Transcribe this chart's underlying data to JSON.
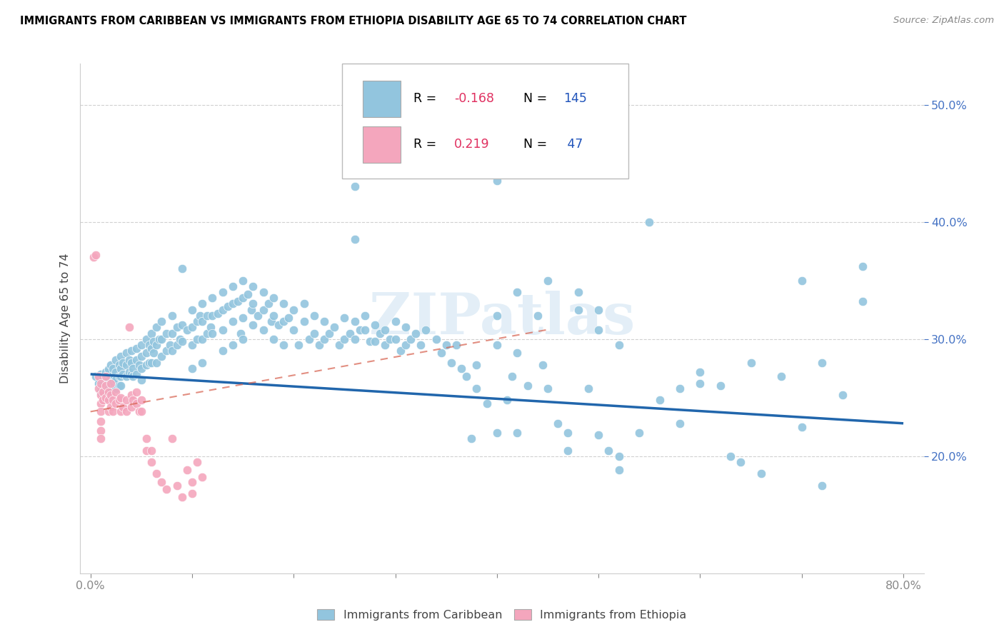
{
  "title": "IMMIGRANTS FROM CARIBBEAN VS IMMIGRANTS FROM ETHIOPIA DISABILITY AGE 65 TO 74 CORRELATION CHART",
  "source": "Source: ZipAtlas.com",
  "xlabel_ticks": [
    "0.0%",
    "",
    "",
    "",
    "",
    "",
    "",
    "",
    "80.0%"
  ],
  "xlabel_tick_vals": [
    0.0,
    0.1,
    0.2,
    0.3,
    0.4,
    0.5,
    0.6,
    0.7,
    0.8
  ],
  "ylabel_ticks": [
    "20.0%",
    "30.0%",
    "40.0%",
    "50.0%"
  ],
  "ylabel_tick_vals": [
    0.2,
    0.3,
    0.4,
    0.5
  ],
  "xlim": [
    -0.01,
    0.82
  ],
  "ylim": [
    0.1,
    0.535
  ],
  "blue_color": "#92c5de",
  "pink_color": "#f4a6bd",
  "trend_blue": "#2166ac",
  "trend_pink": "#d6604d",
  "watermark": "ZIPatlas",
  "legend_label1": "Immigrants from Caribbean",
  "legend_label2": "Immigrants from Ethiopia",
  "blue_scatter": [
    [
      0.005,
      0.268
    ],
    [
      0.008,
      0.262
    ],
    [
      0.01,
      0.27
    ],
    [
      0.01,
      0.26
    ],
    [
      0.01,
      0.255
    ],
    [
      0.012,
      0.268
    ],
    [
      0.015,
      0.272
    ],
    [
      0.015,
      0.258
    ],
    [
      0.018,
      0.274
    ],
    [
      0.018,
      0.265
    ],
    [
      0.018,
      0.258
    ],
    [
      0.018,
      0.252
    ],
    [
      0.02,
      0.278
    ],
    [
      0.02,
      0.268
    ],
    [
      0.02,
      0.26
    ],
    [
      0.02,
      0.255
    ],
    [
      0.022,
      0.275
    ],
    [
      0.022,
      0.263
    ],
    [
      0.025,
      0.282
    ],
    [
      0.025,
      0.272
    ],
    [
      0.025,
      0.265
    ],
    [
      0.025,
      0.258
    ],
    [
      0.028,
      0.278
    ],
    [
      0.028,
      0.268
    ],
    [
      0.028,
      0.26
    ],
    [
      0.03,
      0.285
    ],
    [
      0.03,
      0.275
    ],
    [
      0.03,
      0.268
    ],
    [
      0.03,
      0.26
    ],
    [
      0.032,
      0.28
    ],
    [
      0.032,
      0.27
    ],
    [
      0.035,
      0.288
    ],
    [
      0.035,
      0.278
    ],
    [
      0.035,
      0.268
    ],
    [
      0.038,
      0.282
    ],
    [
      0.038,
      0.272
    ],
    [
      0.04,
      0.29
    ],
    [
      0.04,
      0.28
    ],
    [
      0.04,
      0.27
    ],
    [
      0.042,
      0.275
    ],
    [
      0.042,
      0.268
    ],
    [
      0.045,
      0.292
    ],
    [
      0.045,
      0.282
    ],
    [
      0.045,
      0.27
    ],
    [
      0.048,
      0.278
    ],
    [
      0.05,
      0.295
    ],
    [
      0.05,
      0.285
    ],
    [
      0.05,
      0.275
    ],
    [
      0.05,
      0.265
    ],
    [
      0.055,
      0.3
    ],
    [
      0.055,
      0.288
    ],
    [
      0.055,
      0.278
    ],
    [
      0.058,
      0.295
    ],
    [
      0.058,
      0.28
    ],
    [
      0.06,
      0.305
    ],
    [
      0.06,
      0.292
    ],
    [
      0.06,
      0.28
    ],
    [
      0.062,
      0.298
    ],
    [
      0.062,
      0.288
    ],
    [
      0.065,
      0.31
    ],
    [
      0.065,
      0.295
    ],
    [
      0.065,
      0.28
    ],
    [
      0.068,
      0.3
    ],
    [
      0.07,
      0.315
    ],
    [
      0.07,
      0.3
    ],
    [
      0.07,
      0.285
    ],
    [
      0.075,
      0.305
    ],
    [
      0.075,
      0.29
    ],
    [
      0.078,
      0.295
    ],
    [
      0.08,
      0.32
    ],
    [
      0.08,
      0.305
    ],
    [
      0.08,
      0.29
    ],
    [
      0.085,
      0.31
    ],
    [
      0.085,
      0.295
    ],
    [
      0.088,
      0.3
    ],
    [
      0.09,
      0.36
    ],
    [
      0.09,
      0.312
    ],
    [
      0.09,
      0.298
    ],
    [
      0.095,
      0.308
    ],
    [
      0.1,
      0.325
    ],
    [
      0.1,
      0.31
    ],
    [
      0.1,
      0.295
    ],
    [
      0.1,
      0.275
    ],
    [
      0.105,
      0.315
    ],
    [
      0.105,
      0.3
    ],
    [
      0.108,
      0.32
    ],
    [
      0.11,
      0.33
    ],
    [
      0.11,
      0.315
    ],
    [
      0.11,
      0.3
    ],
    [
      0.11,
      0.28
    ],
    [
      0.115,
      0.32
    ],
    [
      0.115,
      0.305
    ],
    [
      0.118,
      0.31
    ],
    [
      0.12,
      0.335
    ],
    [
      0.12,
      0.32
    ],
    [
      0.12,
      0.305
    ],
    [
      0.125,
      0.322
    ],
    [
      0.13,
      0.34
    ],
    [
      0.13,
      0.325
    ],
    [
      0.13,
      0.308
    ],
    [
      0.13,
      0.29
    ],
    [
      0.135,
      0.328
    ],
    [
      0.14,
      0.345
    ],
    [
      0.14,
      0.33
    ],
    [
      0.14,
      0.315
    ],
    [
      0.14,
      0.295
    ],
    [
      0.145,
      0.332
    ],
    [
      0.148,
      0.305
    ],
    [
      0.15,
      0.35
    ],
    [
      0.15,
      0.335
    ],
    [
      0.15,
      0.318
    ],
    [
      0.15,
      0.3
    ],
    [
      0.155,
      0.338
    ],
    [
      0.158,
      0.325
    ],
    [
      0.16,
      0.345
    ],
    [
      0.16,
      0.33
    ],
    [
      0.16,
      0.312
    ],
    [
      0.165,
      0.32
    ],
    [
      0.17,
      0.34
    ],
    [
      0.17,
      0.325
    ],
    [
      0.17,
      0.308
    ],
    [
      0.175,
      0.33
    ],
    [
      0.178,
      0.315
    ],
    [
      0.18,
      0.335
    ],
    [
      0.18,
      0.32
    ],
    [
      0.18,
      0.3
    ],
    [
      0.185,
      0.312
    ],
    [
      0.19,
      0.33
    ],
    [
      0.19,
      0.315
    ],
    [
      0.19,
      0.295
    ],
    [
      0.195,
      0.318
    ],
    [
      0.2,
      0.325
    ],
    [
      0.2,
      0.308
    ],
    [
      0.205,
      0.295
    ],
    [
      0.21,
      0.33
    ],
    [
      0.21,
      0.315
    ],
    [
      0.215,
      0.3
    ],
    [
      0.22,
      0.32
    ],
    [
      0.22,
      0.305
    ],
    [
      0.225,
      0.295
    ],
    [
      0.23,
      0.315
    ],
    [
      0.23,
      0.3
    ],
    [
      0.235,
      0.305
    ],
    [
      0.24,
      0.31
    ],
    [
      0.245,
      0.295
    ],
    [
      0.25,
      0.318
    ],
    [
      0.25,
      0.3
    ],
    [
      0.255,
      0.305
    ],
    [
      0.26,
      0.43
    ],
    [
      0.26,
      0.385
    ],
    [
      0.26,
      0.315
    ],
    [
      0.26,
      0.3
    ],
    [
      0.265,
      0.308
    ],
    [
      0.27,
      0.32
    ],
    [
      0.27,
      0.308
    ],
    [
      0.275,
      0.298
    ],
    [
      0.28,
      0.312
    ],
    [
      0.28,
      0.298
    ],
    [
      0.285,
      0.305
    ],
    [
      0.29,
      0.308
    ],
    [
      0.29,
      0.295
    ],
    [
      0.295,
      0.3
    ],
    [
      0.3,
      0.315
    ],
    [
      0.3,
      0.3
    ],
    [
      0.305,
      0.29
    ],
    [
      0.31,
      0.31
    ],
    [
      0.31,
      0.295
    ],
    [
      0.315,
      0.3
    ],
    [
      0.32,
      0.305
    ],
    [
      0.325,
      0.295
    ],
    [
      0.33,
      0.308
    ],
    [
      0.34,
      0.3
    ],
    [
      0.345,
      0.288
    ],
    [
      0.35,
      0.295
    ],
    [
      0.355,
      0.28
    ],
    [
      0.36,
      0.295
    ],
    [
      0.365,
      0.275
    ],
    [
      0.37,
      0.268
    ],
    [
      0.375,
      0.215
    ],
    [
      0.38,
      0.278
    ],
    [
      0.38,
      0.258
    ],
    [
      0.39,
      0.245
    ],
    [
      0.4,
      0.435
    ],
    [
      0.4,
      0.32
    ],
    [
      0.4,
      0.295
    ],
    [
      0.4,
      0.22
    ],
    [
      0.41,
      0.248
    ],
    [
      0.415,
      0.268
    ],
    [
      0.42,
      0.34
    ],
    [
      0.42,
      0.288
    ],
    [
      0.42,
      0.22
    ],
    [
      0.43,
      0.26
    ],
    [
      0.44,
      0.32
    ],
    [
      0.445,
      0.278
    ],
    [
      0.45,
      0.35
    ],
    [
      0.45,
      0.258
    ],
    [
      0.46,
      0.228
    ],
    [
      0.47,
      0.22
    ],
    [
      0.47,
      0.205
    ],
    [
      0.48,
      0.34
    ],
    [
      0.48,
      0.325
    ],
    [
      0.49,
      0.258
    ],
    [
      0.5,
      0.325
    ],
    [
      0.5,
      0.308
    ],
    [
      0.5,
      0.218
    ],
    [
      0.51,
      0.205
    ],
    [
      0.52,
      0.295
    ],
    [
      0.52,
      0.2
    ],
    [
      0.52,
      0.188
    ],
    [
      0.54,
      0.22
    ],
    [
      0.55,
      0.4
    ],
    [
      0.56,
      0.248
    ],
    [
      0.58,
      0.258
    ],
    [
      0.58,
      0.228
    ],
    [
      0.6,
      0.272
    ],
    [
      0.6,
      0.262
    ],
    [
      0.62,
      0.26
    ],
    [
      0.63,
      0.2
    ],
    [
      0.64,
      0.195
    ],
    [
      0.65,
      0.28
    ],
    [
      0.66,
      0.185
    ],
    [
      0.68,
      0.268
    ],
    [
      0.7,
      0.35
    ],
    [
      0.7,
      0.225
    ],
    [
      0.72,
      0.28
    ],
    [
      0.72,
      0.175
    ],
    [
      0.74,
      0.252
    ],
    [
      0.76,
      0.362
    ],
    [
      0.76,
      0.332
    ]
  ],
  "pink_scatter": [
    [
      0.003,
      0.37
    ],
    [
      0.005,
      0.372
    ],
    [
      0.008,
      0.268
    ],
    [
      0.008,
      0.258
    ],
    [
      0.01,
      0.262
    ],
    [
      0.01,
      0.252
    ],
    [
      0.01,
      0.245
    ],
    [
      0.01,
      0.238
    ],
    [
      0.01,
      0.23
    ],
    [
      0.01,
      0.222
    ],
    [
      0.01,
      0.215
    ],
    [
      0.012,
      0.255
    ],
    [
      0.012,
      0.248
    ],
    [
      0.015,
      0.268
    ],
    [
      0.015,
      0.26
    ],
    [
      0.015,
      0.25
    ],
    [
      0.018,
      0.255
    ],
    [
      0.018,
      0.248
    ],
    [
      0.018,
      0.238
    ],
    [
      0.02,
      0.262
    ],
    [
      0.02,
      0.252
    ],
    [
      0.02,
      0.242
    ],
    [
      0.022,
      0.248
    ],
    [
      0.022,
      0.238
    ],
    [
      0.025,
      0.255
    ],
    [
      0.025,
      0.245
    ],
    [
      0.028,
      0.248
    ],
    [
      0.03,
      0.25
    ],
    [
      0.03,
      0.238
    ],
    [
      0.032,
      0.242
    ],
    [
      0.035,
      0.248
    ],
    [
      0.035,
      0.238
    ],
    [
      0.038,
      0.31
    ],
    [
      0.04,
      0.252
    ],
    [
      0.04,
      0.242
    ],
    [
      0.042,
      0.248
    ],
    [
      0.045,
      0.255
    ],
    [
      0.045,
      0.245
    ],
    [
      0.048,
      0.238
    ],
    [
      0.05,
      0.248
    ],
    [
      0.05,
      0.238
    ],
    [
      0.055,
      0.215
    ],
    [
      0.055,
      0.205
    ],
    [
      0.06,
      0.205
    ],
    [
      0.06,
      0.195
    ],
    [
      0.065,
      0.185
    ],
    [
      0.07,
      0.178
    ],
    [
      0.075,
      0.172
    ],
    [
      0.08,
      0.215
    ],
    [
      0.085,
      0.175
    ],
    [
      0.09,
      0.165
    ],
    [
      0.095,
      0.188
    ],
    [
      0.1,
      0.178
    ],
    [
      0.1,
      0.168
    ],
    [
      0.105,
      0.195
    ],
    [
      0.11,
      0.182
    ]
  ],
  "blue_trend_x": [
    0.0,
    0.8
  ],
  "blue_trend_y": [
    0.27,
    0.228
  ],
  "pink_trend_x": [
    0.0,
    0.45
  ],
  "pink_trend_y": [
    0.238,
    0.308
  ],
  "grid_color": "#d0d0d0",
  "tick_color_y": "#4472c4",
  "tick_color_x": "#666666"
}
